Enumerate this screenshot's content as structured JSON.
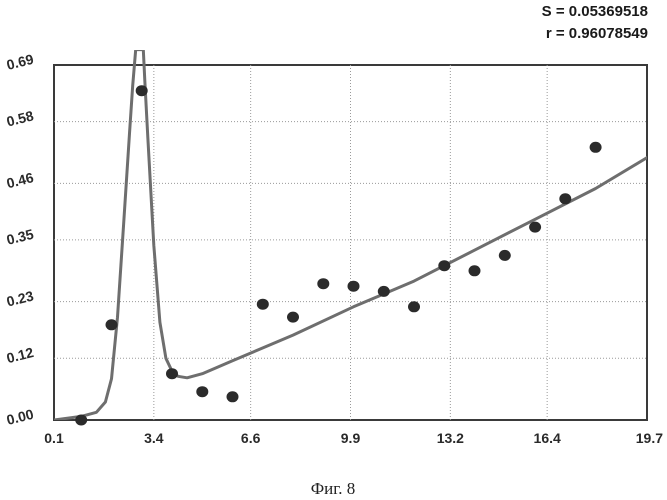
{
  "chart_data": {
    "type": "scatter",
    "title": "",
    "xlabel": "",
    "ylabel": "",
    "xlim": [
      0.1,
      19.7
    ],
    "ylim": [
      0.0,
      0.69
    ],
    "x_ticks": [
      "0.1",
      "3.4",
      "6.6",
      "9.9",
      "13.2",
      "16.4",
      "19.7"
    ],
    "y_ticks": [
      "0.00",
      "0.12",
      "0.23",
      "0.35",
      "0.46",
      "0.58",
      "0.69"
    ],
    "grid": true,
    "stats": {
      "s_label": "S = 0.05369518",
      "r_label": "r = 0.96078549"
    },
    "series": [
      {
        "name": "observed",
        "kind": "points",
        "x": [
          1.0,
          2.0,
          3.0,
          4.0,
          5.0,
          6.0,
          7.0,
          8.0,
          9.0,
          10.0,
          11.0,
          12.0,
          13.0,
          14.0,
          15.0,
          16.0,
          17.0,
          18.0
        ],
        "y": [
          0.0,
          0.185,
          0.64,
          0.09,
          0.055,
          0.045,
          0.225,
          0.2,
          0.265,
          0.26,
          0.25,
          0.22,
          0.3,
          0.29,
          0.32,
          0.375,
          0.43,
          0.53
        ]
      },
      {
        "name": "fit",
        "kind": "line",
        "x": [
          0.1,
          1.0,
          1.5,
          1.8,
          2.0,
          2.2,
          2.4,
          2.6,
          2.7,
          2.8,
          2.85,
          3.05,
          3.1,
          3.2,
          3.4,
          3.6,
          3.8,
          4.0,
          4.2,
          4.5,
          5.0,
          6.0,
          8.0,
          10.0,
          12.0,
          14.0,
          16.0,
          18.0,
          19.7
        ],
        "y": [
          0.0,
          0.007,
          0.015,
          0.035,
          0.08,
          0.2,
          0.38,
          0.56,
          0.65,
          0.72,
          0.72,
          0.72,
          0.66,
          0.55,
          0.34,
          0.19,
          0.12,
          0.095,
          0.085,
          0.082,
          0.09,
          0.115,
          0.165,
          0.22,
          0.27,
          0.33,
          0.39,
          0.45,
          0.51
        ]
      }
    ]
  },
  "caption": "Фиг. 8"
}
